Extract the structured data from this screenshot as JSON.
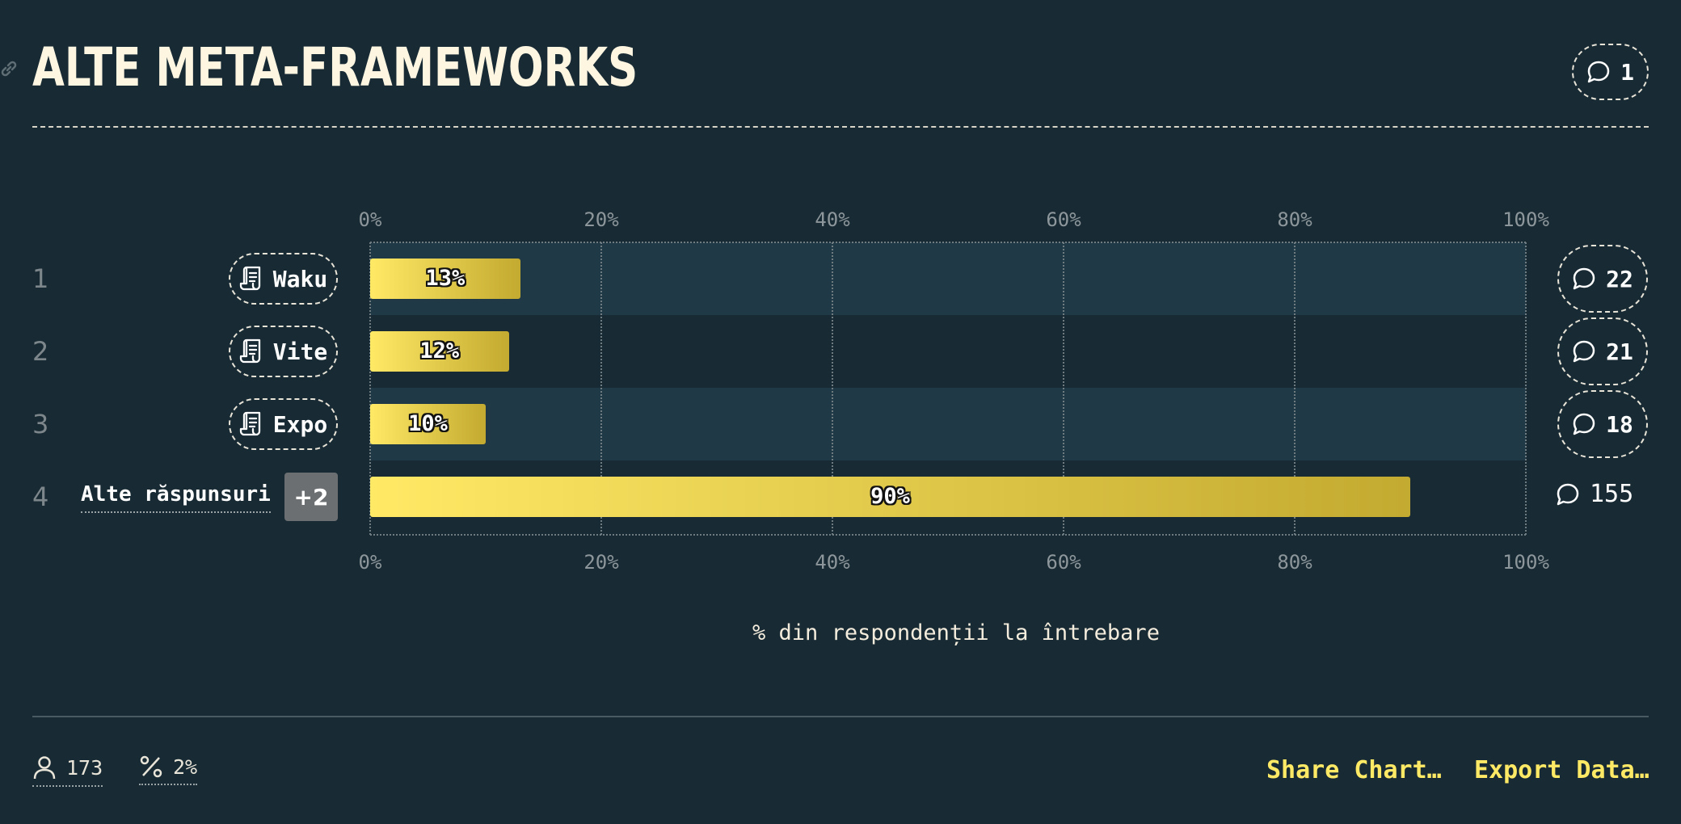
{
  "title": "ALTE META-FRAMEWORKS",
  "header_comment_count": "1",
  "chart_data": {
    "type": "bar",
    "orientation": "horizontal",
    "categories": [
      "Waku",
      "Vite",
      "Expo",
      "Alte răspunsuri"
    ],
    "values": [
      13,
      12,
      10,
      90
    ],
    "value_labels": [
      "13%",
      "12%",
      "10%",
      "90%"
    ],
    "ranks": [
      "1",
      "2",
      "3",
      "4"
    ],
    "comment_counts": [
      "22",
      "21",
      "18",
      "155"
    ],
    "other_extra_badge": "+2",
    "xlim": [
      0,
      100
    ],
    "x_ticks": [
      "0%",
      "20%",
      "40%",
      "60%",
      "80%",
      "100%"
    ],
    "xlabel": "% din respondenții la întrebare",
    "grid": true
  },
  "footer": {
    "respondents": "173",
    "percent": "2%",
    "share_label": "Share Chart…",
    "export_label": "Export Data…"
  },
  "colors": {
    "background": "#182a34",
    "band": "#1f3947",
    "bar_start": "#ffe965",
    "bar_end": "#c3aa30",
    "accent": "#ffe965"
  },
  "icons": {
    "header": "link-icon",
    "comment": "comment-icon",
    "entity": "scroll-icon",
    "respondents": "user-icon",
    "percent": "percent-icon"
  }
}
